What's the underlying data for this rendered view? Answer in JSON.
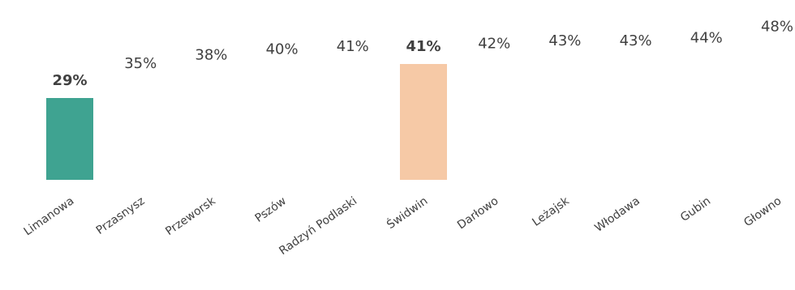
{
  "chart_data": {
    "type": "bar",
    "categories": [
      "Limanowa",
      "Przasnysz",
      "Przeworsk",
      "Pszów",
      "Radzyń Podlaski",
      "Świdwin",
      "Darłowo",
      "Leżajsk",
      "Włodawa",
      "Gubin",
      "Głowno"
    ],
    "values": [
      29,
      35,
      38,
      40,
      41,
      41,
      42,
      43,
      43,
      44,
      48
    ],
    "value_labels": [
      "29%",
      "35%",
      "38%",
      "40%",
      "41%",
      "41%",
      "42%",
      "43%",
      "43%",
      "44%",
      "48%"
    ],
    "value_unit": "%",
    "highlighted": [
      {
        "category": "Limanowa",
        "color": "#3fa391"
      },
      {
        "category": "Świdwin",
        "color": "#f6c9a6"
      }
    ],
    "other_bar_color": "#ffffff",
    "grid": false,
    "legend": "none"
  }
}
